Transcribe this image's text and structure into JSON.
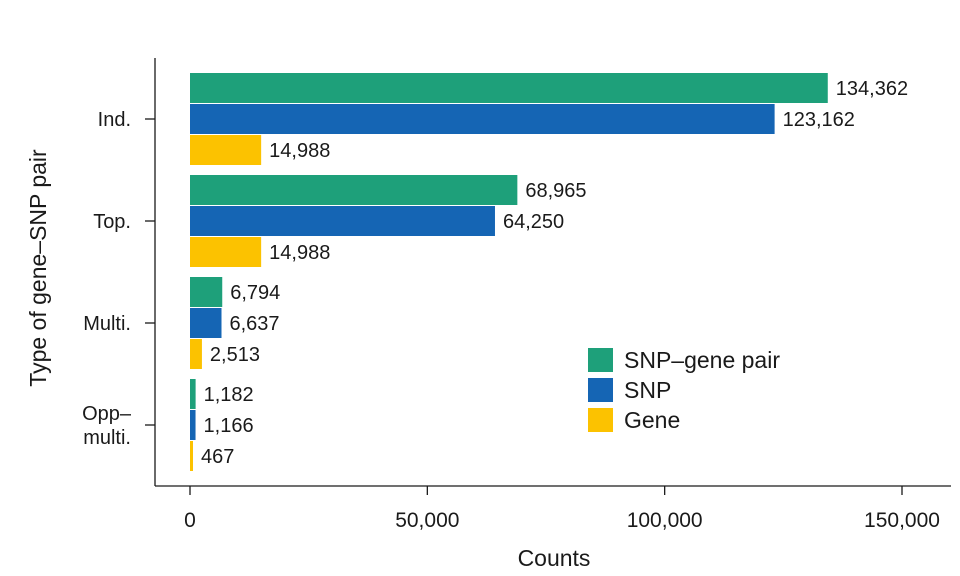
{
  "chart_data": {
    "type": "bar",
    "orientation": "horizontal",
    "title": "",
    "xlabel": "Counts",
    "ylabel": "Type of gene–SNP pair",
    "xlim": [
      0,
      160000
    ],
    "xticks": [
      0,
      50000,
      100000,
      150000
    ],
    "xtick_labels": [
      "0",
      "50,000",
      "100,000",
      "150,000"
    ],
    "categories": [
      "Ind.",
      "Top.",
      "Multi.",
      "Opp–\nmulti."
    ],
    "series": [
      {
        "name": "SNP–gene pair",
        "color": "#1ea07a",
        "values": [
          134362,
          68965,
          6794,
          1182
        ],
        "labels": [
          "134,362",
          "68,965",
          "6,794",
          "1,182"
        ]
      },
      {
        "name": "SNP",
        "color": "#1565b4",
        "values": [
          123162,
          64250,
          6637,
          1166
        ],
        "labels": [
          "123,162",
          "64,250",
          "6,637",
          "1,166"
        ]
      },
      {
        "name": "Gene",
        "color": "#fcc200",
        "values": [
          14988,
          14988,
          2513,
          467
        ],
        "labels": [
          "14,988",
          "14,988",
          "2,513",
          "467"
        ]
      }
    ],
    "legend_position": "bottom-right",
    "grid": false
  }
}
